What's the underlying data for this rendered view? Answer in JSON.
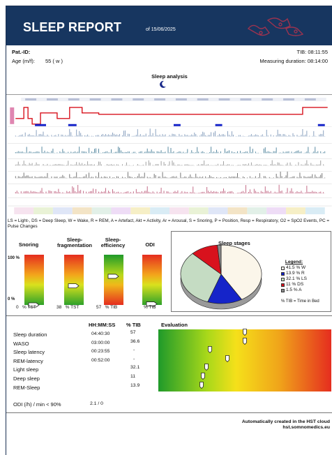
{
  "header": {
    "title": "SLEEP REPORT",
    "date": "of 15/06/2025",
    "bg_color": "#173660",
    "deco_icon": "sleep-graphic-icon"
  },
  "patient": {
    "id_label": "Pat.-ID:",
    "age_label": "Age (m/f):",
    "age_value": "55 ( w )",
    "tib": "TIB: 08:11:55",
    "measuring_duration": "Measuring duration: 08:14:00"
  },
  "sleep_analysis": {
    "title": "Sleep analysis",
    "legend": "LS = Light-, DS = Deep Sleep, W = Wake, R = REM, A = Artefact, Akt = Activity, Ar = Arousal, S = Snoring, P = Position,  Resp = Respiratory, O2 = SpO2 Events, PC = Pulse Changes",
    "moon_icon": "moon-icon"
  },
  "gauges": [
    {
      "title": "Snoring",
      "value": "0",
      "unit": "% TST",
      "level": 0.0
    },
    {
      "title": "Sleep-fragmentation",
      "title_line1": "Sleep-",
      "title_line2": "fragmentation",
      "value": "38",
      "unit": "% TST",
      "level": 0.38
    },
    {
      "title": "Sleep-efficiency",
      "title_line1": "Sleep-",
      "title_line2": "efficiency",
      "value": "57",
      "unit": "% TIB",
      "level": 0.57
    },
    {
      "title": "ODI",
      "value": "",
      "unit": "% TIB",
      "level": 0.02
    }
  ],
  "gauge_axis": {
    "top": "100 %",
    "bottom": "0 %"
  },
  "sleep_stages": {
    "title": "Sleep stages",
    "legend_title": "Legend:",
    "tib_note": "% TIB = Time in Bed",
    "items": [
      {
        "label": "41.5 %  W",
        "pct": 41.5,
        "color": "#fbf6ea"
      },
      {
        "label": "13.9 %  R",
        "pct": 13.9,
        "color": "#1524c9"
      },
      {
        "label": "32.1 %  LS",
        "pct": 32.1,
        "color": "#c5dcc3"
      },
      {
        "label": "11 %  DS",
        "pct": 11.0,
        "color": "#d8121d"
      },
      {
        "label": "1.5 %  A",
        "pct": 1.5,
        "color": "#8a8a8a"
      }
    ]
  },
  "table": {
    "col_time": "HH:MM:SS",
    "col_tib": "% TIB",
    "col_eval": "Evaluation",
    "rows": [
      {
        "label": "Sleep duration",
        "time": "04:40:30",
        "tib": "57",
        "eval": 0.5
      },
      {
        "label": "WASO",
        "time": "03:00:00",
        "tib": "36.6",
        "eval": 0.5
      },
      {
        "label": "Sleep latency",
        "time": "00:23:55",
        "tib": "-",
        "eval": 0.3
      },
      {
        "label": "REM-latency",
        "time": "00:52:00",
        "tib": "-",
        "eval": 0.4
      },
      {
        "label": "Light sleep",
        "time": "",
        "tib": "32.1",
        "eval": 0.28
      },
      {
        "label": "Deep sleep",
        "time": "",
        "tib": "11",
        "eval": 0.26
      },
      {
        "label": "REM-Sleep",
        "time": "",
        "tib": "13.9",
        "eval": 0.25
      }
    ],
    "odi_label": "ODI (/h) / min < 90%",
    "odi_value": "2.1 / 0"
  },
  "footer": {
    "line1": "Automatically created in the HST cloud",
    "line2": "hst.somnomedics.eu"
  }
}
